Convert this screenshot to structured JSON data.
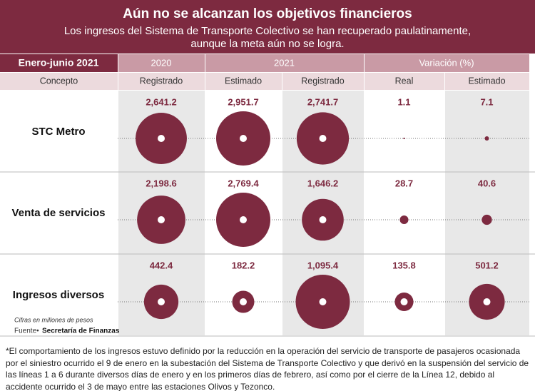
{
  "header": {
    "title": "Aún no se alcanzan los objetivos financieros",
    "subtitle": [
      "Los ingresos del Sistema de Transporte Colectivo se han recuperado paulatinamente,",
      "aunque la meta aún no se logra."
    ]
  },
  "table": {
    "period": "Enero-junio 2021",
    "groups": [
      "2020",
      "2021",
      "Variación (%)"
    ],
    "columns": [
      "Concepto",
      "Registrado",
      "Estimado",
      "Registrado",
      "Real",
      "Estimado"
    ],
    "rows": [
      {
        "concept": "STC Metro",
        "cells": [
          {
            "value": 2641.2,
            "label": "2,641.2"
          },
          {
            "value": 2951.7,
            "label": "2,951.7"
          },
          {
            "value": 2741.7,
            "label": "2,741.7"
          },
          1.1,
          7.1
        ]
      },
      {
        "concept": "Venta de servicios",
        "cells": [
          {
            "value": 2198.6,
            "label": "2,198.6"
          },
          {
            "value": 2769.4,
            "label": "2,769.4"
          },
          {
            "value": 1646.2,
            "label": "1,646.2"
          },
          28.7,
          40.6
        ]
      },
      {
        "concept": "Ingresos diversos",
        "cells": [
          442.4,
          182.2,
          {
            "value": 1095.4,
            "label": "1,095.4"
          },
          135.8,
          501.2
        ]
      }
    ]
  },
  "notes": {
    "units": "Cifras en millones de pesos",
    "source_label": "Fuente•",
    "source": "Secretaría de Finanzas"
  },
  "footnote": "*El comportamiento de los ingresos estuvo definido por la reducción en la operación del servicio de transporte de pasajeros ocasionada por el siniestro ocurrido el 9 de enero en la subestación del Sistema de Transporte Colectivo y que derivó en la suspensión del servicio de las líneas 1 a 6 durante diversos días de enero y en los primeros días de febrero, así como por el cierre de la Línea 12, debido al accidente ocurrido el 3 de mayo entre las estaciones Olivos y Tezonco."
}
